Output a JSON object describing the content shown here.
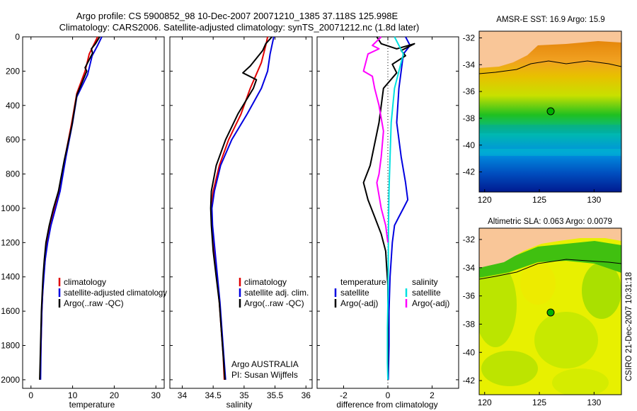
{
  "header": {
    "line1": "Argo profile: CS 5900852_98 10-Dec-2007 20071210_1385 37.118S 125.998E",
    "line2": "Climatology: CARS2006. Satellite-adjusted climatology: synTS_20071212.nc (1.8d later)"
  },
  "side_credit": "CSIRO 21-Dec-2007 10:31:18",
  "colors": {
    "climatology": "#e00000",
    "satellite": "#0000e0",
    "argo": "#000000",
    "salinity_sat": "#00e0e0",
    "salinity_argo": "#ff00ff",
    "land": "#f9c698"
  },
  "chart_data": [
    {
      "type": "line",
      "id": "temperature",
      "xlabel": "temperature",
      "ylabel": "",
      "xlim": [
        -2,
        32
      ],
      "ylim": [
        2050,
        0
      ],
      "xticks": [
        "0",
        "10",
        "20",
        "30"
      ],
      "yticks": [
        "0",
        "200",
        "400",
        "600",
        "800",
        "1000",
        "1200",
        "1400",
        "1600",
        "1800",
        "2000"
      ],
      "legend": [
        "climatology",
        "satellite-adjusted climatology",
        "Argo(..raw -QC)"
      ],
      "series": [
        {
          "name": "climatology",
          "color": "#e00000",
          "points": [
            [
              16,
              0
            ],
            [
              15,
              50
            ],
            [
              14,
              100
            ],
            [
              13,
              200
            ],
            [
              11,
              330
            ],
            [
              9.8,
              500
            ],
            [
              8.2,
              700
            ],
            [
              6.8,
              900
            ],
            [
              5.6,
              1000
            ],
            [
              4.6,
              1100
            ],
            [
              3.8,
              1200
            ],
            [
              3.4,
              1300
            ],
            [
              3.0,
              1400
            ],
            [
              2.8,
              1500
            ],
            [
              2.6,
              1600
            ],
            [
              2.5,
              1700
            ],
            [
              2.4,
              1800
            ],
            [
              2.3,
              1900
            ],
            [
              2.2,
              2000
            ]
          ]
        },
        {
          "name": "satellite-adjusted climatology",
          "color": "#0000e0",
          "points": [
            [
              17,
              0
            ],
            [
              16,
              50
            ],
            [
              14.7,
              110
            ],
            [
              13.6,
              220
            ],
            [
              11,
              350
            ],
            [
              10,
              500
            ],
            [
              8.4,
              700
            ],
            [
              7,
              900
            ],
            [
              5.9,
              1000
            ],
            [
              4.8,
              1100
            ],
            [
              4,
              1200
            ],
            [
              3.4,
              1300
            ],
            [
              3.1,
              1400
            ],
            [
              2.8,
              1500
            ],
            [
              2.6,
              1600
            ],
            [
              2.5,
              1700
            ],
            [
              2.4,
              1800
            ],
            [
              2.35,
              1900
            ],
            [
              2.3,
              2000
            ]
          ]
        },
        {
          "name": "Argo(..raw -QC)",
          "color": "#000000",
          "points": [
            [
              16.5,
              0
            ],
            [
              15.5,
              40
            ],
            [
              14.5,
              70
            ],
            [
              14.8,
              95
            ],
            [
              13,
              180
            ],
            [
              13.4,
              200
            ],
            [
              11,
              340
            ],
            [
              9.8,
              520
            ],
            [
              8,
              720
            ],
            [
              6.6,
              900
            ],
            [
              5.4,
              1000
            ],
            [
              4.4,
              1100
            ],
            [
              3.6,
              1200
            ],
            [
              3.2,
              1300
            ],
            [
              2.9,
              1400
            ],
            [
              2.7,
              1500
            ],
            [
              2.5,
              1600
            ],
            [
              2.4,
              1700
            ],
            [
              2.3,
              1800
            ],
            [
              2.2,
              1900
            ],
            [
              2.1,
              2000
            ]
          ]
        }
      ]
    },
    {
      "type": "line",
      "id": "salinity",
      "xlabel": "salinity",
      "xlim": [
        33.8,
        36.1
      ],
      "ylim": [
        2050,
        0
      ],
      "xticks": [
        "34",
        "34.5",
        "35",
        "35.5",
        "36"
      ],
      "legend": [
        "climatology",
        "satellite adj. clim.",
        "Argo(..raw -QC)"
      ],
      "note": [
        "Argo AUSTRALIA",
        "PI: Susan Wijffels"
      ],
      "series": [
        {
          "name": "climatology",
          "color": "#e00000",
          "points": [
            [
              35.38,
              0
            ],
            [
              35.35,
              50
            ],
            [
              35.28,
              150
            ],
            [
              35.1,
              300
            ],
            [
              34.95,
              450
            ],
            [
              34.75,
              600
            ],
            [
              34.6,
              750
            ],
            [
              34.5,
              900
            ],
            [
              34.47,
              1000
            ],
            [
              34.48,
              1100
            ],
            [
              34.52,
              1250
            ],
            [
              34.56,
              1400
            ],
            [
              34.6,
              1550
            ],
            [
              34.63,
              1700
            ],
            [
              34.66,
              1850
            ],
            [
              34.68,
              2000
            ]
          ]
        },
        {
          "name": "satellite adj. clim.",
          "color": "#0000e0",
          "points": [
            [
              35.48,
              0
            ],
            [
              35.42,
              100
            ],
            [
              35.38,
              200
            ],
            [
              35.28,
              300
            ],
            [
              35.05,
              450
            ],
            [
              34.8,
              600
            ],
            [
              34.62,
              750
            ],
            [
              34.52,
              900
            ],
            [
              34.48,
              1000
            ],
            [
              34.49,
              1100
            ],
            [
              34.53,
              1250
            ],
            [
              34.57,
              1400
            ],
            [
              34.61,
              1550
            ],
            [
              34.64,
              1700
            ],
            [
              34.67,
              1850
            ],
            [
              34.7,
              2000
            ]
          ]
        },
        {
          "name": "Argo(..raw -QC)",
          "color": "#000000",
          "points": [
            [
              35.45,
              0
            ],
            [
              35.35,
              40
            ],
            [
              35.3,
              80
            ],
            [
              35.1,
              170
            ],
            [
              34.98,
              210
            ],
            [
              35.2,
              250
            ],
            [
              35.15,
              300
            ],
            [
              34.9,
              450
            ],
            [
              34.7,
              600
            ],
            [
              34.55,
              750
            ],
            [
              34.47,
              900
            ],
            [
              34.46,
              1000
            ],
            [
              34.47,
              1100
            ],
            [
              34.5,
              1250
            ],
            [
              34.55,
              1400
            ],
            [
              34.6,
              1550
            ],
            [
              34.63,
              1700
            ],
            [
              34.66,
              1850
            ],
            [
              34.69,
              2000
            ]
          ]
        }
      ]
    },
    {
      "type": "line",
      "id": "difference",
      "xlabel": "difference from climatology",
      "xlim": [
        -3.2,
        3.2
      ],
      "ylim": [
        2050,
        0
      ],
      "xticks": [
        "-2",
        "0",
        "2"
      ],
      "legend": [
        "temperature",
        "satellite",
        "Argo(-adj)",
        "salinity",
        "satellite",
        "Argo(-adj)"
      ],
      "series": [
        {
          "name": "temperature satellite",
          "color": "#0000e0",
          "points": [
            [
              0.8,
              0
            ],
            [
              1.0,
              50
            ],
            [
              0.7,
              100
            ],
            [
              0.6,
              200
            ],
            [
              0.5,
              300
            ],
            [
              0.4,
              500
            ],
            [
              0.6,
              700
            ],
            [
              0.8,
              850
            ],
            [
              0.9,
              950
            ],
            [
              0.7,
              1000
            ],
            [
              0.5,
              1050
            ],
            [
              0.3,
              1100
            ],
            [
              0.2,
              1200
            ],
            [
              0.1,
              1400
            ],
            [
              0.05,
              1600
            ],
            [
              0.05,
              1800
            ],
            [
              0.02,
              2000
            ]
          ]
        },
        {
          "name": "temperature Argo(-adj)",
          "color": "#000000",
          "points": [
            [
              -0.5,
              0
            ],
            [
              -0.3,
              40
            ],
            [
              0.4,
              70
            ],
            [
              1.2,
              40
            ],
            [
              0.6,
              80
            ],
            [
              0.8,
              110
            ],
            [
              0.2,
              160
            ],
            [
              0.4,
              210
            ],
            [
              -0.2,
              300
            ],
            [
              -0.4,
              500
            ],
            [
              -0.8,
              750
            ],
            [
              -1.1,
              850
            ],
            [
              -0.9,
              950
            ],
            [
              -0.6,
              1050
            ],
            [
              -0.3,
              1150
            ],
            [
              -0.1,
              1250
            ],
            [
              -0.05,
              1350
            ],
            [
              0,
              1450
            ],
            [
              0,
              1600
            ],
            [
              0,
              1800
            ],
            [
              0,
              2000
            ]
          ]
        },
        {
          "name": "salinity satellite",
          "color": "#00e0e0",
          "points": [
            [
              0.3,
              0
            ],
            [
              0.5,
              50
            ],
            [
              0.7,
              100
            ],
            [
              0.5,
              200
            ],
            [
              0.3,
              300
            ],
            [
              0.15,
              500
            ],
            [
              0.1,
              700
            ],
            [
              0.05,
              900
            ],
            [
              0.03,
              1100
            ],
            [
              0.02,
              1300
            ],
            [
              0.01,
              1500
            ],
            [
              -0.02,
              1700
            ],
            [
              -0.02,
              1900
            ],
            [
              0,
              2000
            ]
          ]
        },
        {
          "name": "salinity Argo(-adj)",
          "color": "#ff00ff",
          "points": [
            [
              -0.3,
              0
            ],
            [
              -0.7,
              50
            ],
            [
              -0.4,
              70
            ],
            [
              -0.9,
              100
            ],
            [
              -1.1,
              200
            ],
            [
              -0.7,
              230
            ],
            [
              -0.6,
              300
            ],
            [
              -0.4,
              400
            ],
            [
              -0.2,
              550
            ],
            [
              -0.3,
              700
            ],
            [
              -0.4,
              800
            ],
            [
              -0.5,
              850
            ],
            [
              -0.3,
              1000
            ],
            [
              -0.1,
              1100
            ],
            [
              0,
              1200
            ]
          ]
        }
      ]
    },
    {
      "type": "heatmap",
      "id": "sst_map",
      "title": "AMSR-E SST: 16.9 Argo: 15.9",
      "xlim": [
        119.5,
        132.5
      ],
      "ylim": [
        -43.5,
        -31.5
      ],
      "xticks": [
        "120",
        "125",
        "130"
      ],
      "yticks": [
        "-32",
        "-34",
        "-36",
        "-38",
        "-40",
        "-42"
      ],
      "argo_position": [
        126,
        -37.1
      ]
    },
    {
      "type": "heatmap",
      "id": "sla_map",
      "title": "Altimetric SLA: 0.063 Argo: 0.0079",
      "xlim": [
        119.5,
        132.5
      ],
      "ylim": [
        -43,
        -31.2
      ],
      "xticks": [
        "120",
        "125",
        "130"
      ],
      "yticks": [
        "-32",
        "-34",
        "-36",
        "-38",
        "-40",
        "-42"
      ],
      "argo_position": [
        126,
        -37.1
      ]
    }
  ]
}
